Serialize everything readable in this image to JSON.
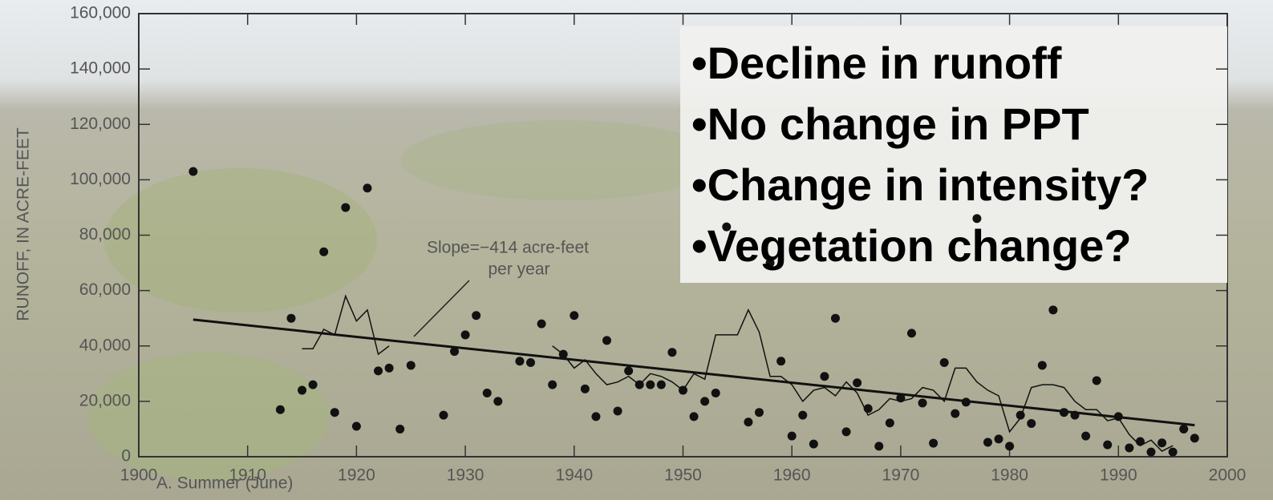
{
  "chart_data": {
    "type": "scatter",
    "ylabel": "RUNOFF, IN ACRE-FEET",
    "panel_label": "A.  Summer (June)",
    "annotation_lines": [
      "Slope=−414 acre-feet",
      "per year"
    ],
    "bullets": [
      "•Decline in runoff",
      "•No change in PPT",
      "•Change in intensity?",
      "•Vegetation change?"
    ],
    "xlim": [
      1900,
      2000
    ],
    "xticks": [
      1900,
      1910,
      1920,
      1930,
      1940,
      1950,
      1960,
      1970,
      1980,
      1990,
      2000
    ],
    "ylim": [
      0,
      160000
    ],
    "yticks": [
      0,
      {
        "value": 20000,
        "label": "20,000"
      },
      {
        "value": 40000,
        "label": "40,000"
      },
      {
        "value": 60000,
        "label": "60,000"
      },
      {
        "value": 80000,
        "label": "80,000"
      },
      {
        "value": 100000,
        "label": "100,000"
      },
      {
        "value": 120000,
        "label": "120,000"
      },
      {
        "value": 140000,
        "label": "140,000"
      },
      {
        "value": 160000,
        "label": "160,000"
      }
    ],
    "color": "#111111",
    "points": {
      "x": [
        1905,
        1913,
        1914,
        1915,
        1916,
        1917,
        1918,
        1919,
        1920,
        1921,
        1922,
        1923,
        1924,
        1925,
        1928,
        1929,
        1930,
        1931,
        1932,
        1933,
        1935,
        1936,
        1937,
        1938,
        1939,
        1940,
        1941,
        1942,
        1943,
        1944,
        1945,
        1946,
        1947,
        1948,
        1949,
        1950,
        1951,
        1952,
        1953,
        1954,
        1956,
        1957,
        1958,
        1959,
        1960,
        1961,
        1962,
        1963,
        1964,
        1965,
        1966,
        1967,
        1968,
        1969,
        1970,
        1971,
        1972,
        1973,
        1974,
        1975,
        1976,
        1977,
        1978,
        1979,
        1980,
        1981,
        1982,
        1983,
        1984,
        1985,
        1986,
        1987,
        1988,
        1989,
        1990,
        1991,
        1992,
        1993,
        1994,
        1995,
        1996,
        1997
      ],
      "values": [
        103000,
        17000,
        50000,
        24000,
        26000,
        74000,
        16000,
        90000,
        11000,
        97000,
        31000,
        32000,
        10000,
        33000,
        15000,
        38000,
        44000,
        51000,
        23000,
        20000,
        34500,
        34000,
        48000,
        26000,
        37000,
        51000,
        24500,
        14500,
        42000,
        16500,
        31000,
        26000,
        26000,
        26000,
        37700,
        24000,
        14500,
        20000,
        23000,
        83000,
        12500,
        16000,
        70000,
        34500,
        7500,
        15000,
        4600,
        29000,
        50000,
        9000,
        26700,
        17400,
        3800,
        12200,
        21200,
        44600,
        19400,
        4900,
        34000,
        15600,
        19700,
        86000,
        5200,
        6400,
        3800,
        15000,
        12000,
        33000,
        53000,
        16000,
        15000,
        7500,
        27500,
        4300,
        14500,
        3200,
        5500,
        1700,
        5000,
        1700,
        10000,
        6700
      ]
    },
    "trend": {
      "x": [
        1905,
        1997
      ],
      "values": [
        49500,
        11400
      ]
    },
    "moving_average": {
      "x": [
        1915,
        1916,
        1917,
        1918,
        1919,
        1920,
        1921,
        1922,
        1923,
        1930,
        1938,
        1939,
        1940,
        1941,
        1942,
        1943,
        1944,
        1945,
        1946,
        1947,
        1948,
        1949,
        1950,
        1951,
        1952,
        1953,
        1954,
        1955,
        1956,
        1957,
        1958,
        1959,
        1960,
        1961,
        1962,
        1963,
        1964,
        1965,
        1966,
        1967,
        1968,
        1969,
        1970,
        1971,
        1972,
        1973,
        1974,
        1975,
        1976,
        1977,
        1978,
        1979,
        1980,
        1981,
        1982,
        1983,
        1984,
        1985,
        1986,
        1987,
        1988,
        1989,
        1990,
        1991,
        1992,
        1993,
        1994,
        1995
      ],
      "values": [
        39000,
        39000,
        46000,
        44000,
        58000,
        49000,
        53000,
        37000,
        40000,
        null,
        40000,
        37000,
        32000,
        35000,
        30000,
        26000,
        27000,
        29000,
        26000,
        30000,
        29000,
        27000,
        24000,
        30000,
        28000,
        44000,
        44000,
        44000,
        53000,
        45000,
        29000,
        29000,
        26000,
        20000,
        24000,
        25000,
        22000,
        27000,
        23000,
        15000,
        17000,
        21000,
        20000,
        21000,
        25000,
        24000,
        20000,
        32000,
        32000,
        27000,
        24000,
        22000,
        9000,
        14000,
        25000,
        26000,
        26000,
        25000,
        20000,
        17000,
        17000,
        13000,
        14000,
        8000,
        4000,
        6000,
        2000,
        4000
      ]
    }
  }
}
